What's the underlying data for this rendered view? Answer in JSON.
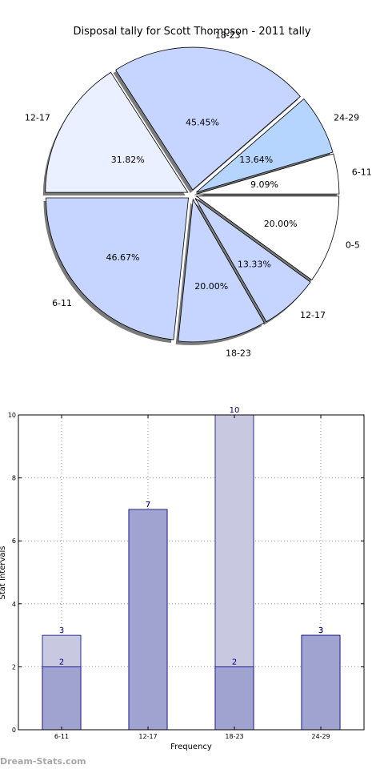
{
  "chart_data": [
    {
      "type": "pie",
      "title": "Disposal tally for Scott Thompson - 2011 tally",
      "rings": [
        {
          "name": "",
          "slices": [
            {
              "label": "0-5",
              "pct_label": "20.00%",
              "value": 20.0,
              "color": "#ffffff"
            },
            {
              "label": "12-17",
              "pct_label": "13.33%",
              "value": 13.33,
              "color": "#c5d5ff"
            },
            {
              "label": "18-23",
              "pct_label": "20.00%",
              "value": 20.0,
              "color": "#c5d5ff"
            },
            {
              "label": "6-11",
              "pct_label": "46.67%",
              "value": 46.67,
              "color": "#c5d5ff"
            }
          ]
        },
        {
          "name": "",
          "slices": [
            {
              "label": "6-11",
              "pct_label": "9.09%",
              "value": 9.09,
              "color": "#ffffff"
            },
            {
              "label": "24-29",
              "pct_label": "13.64%",
              "value": 13.64,
              "color": "#b5d5ff"
            },
            {
              "label": "18-23",
              "pct_label": "45.45%",
              "value": 45.45,
              "color": "#c5d5ff"
            },
            {
              "label": "12-17",
              "pct_label": "31.82%",
              "value": 31.82,
              "color": "#eaf0ff"
            }
          ]
        }
      ]
    },
    {
      "type": "bar",
      "stacked": false,
      "categories": [
        "6-11",
        "12-17",
        "18-23",
        "24-29"
      ],
      "series": [
        {
          "name": "",
          "values": [
            3,
            7,
            10,
            3
          ],
          "color": "#c8c8e0"
        },
        {
          "name": "",
          "values": [
            2,
            7,
            2,
            3
          ],
          "color": "#a0a3d0"
        }
      ],
      "xlabel": "Frequency",
      "ylabel": "Stat Intervals",
      "ylim": [
        0,
        10
      ],
      "yticks": [
        0,
        2,
        4,
        6,
        8,
        10
      ],
      "grid": true
    }
  ],
  "footer": {
    "watermark": "Dream-Stats.com"
  }
}
